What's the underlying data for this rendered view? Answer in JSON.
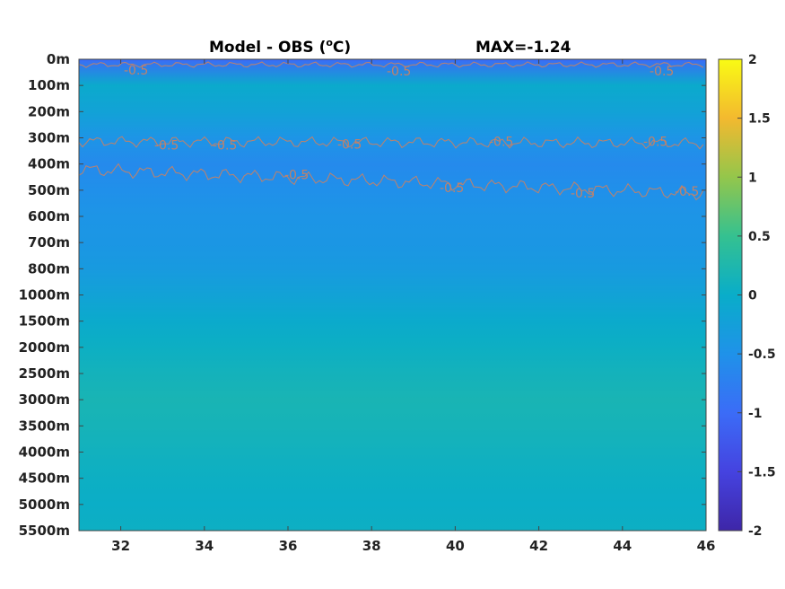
{
  "chart_data": {
    "type": "heatmap",
    "title_left": "Model - OBS (",
    "title_unit_sup": "o",
    "title_unit_tail": "C)",
    "title_right": "MAX=-1.24",
    "x_ticks": [
      32,
      34,
      36,
      38,
      40,
      42,
      44,
      46
    ],
    "xlim": [
      31,
      46
    ],
    "y_tick_labels": [
      "0m",
      "100m",
      "200m",
      "300m",
      "400m",
      "500m",
      "600m",
      "700m",
      "800m",
      "1000m",
      "1500m",
      "2000m",
      "2500m",
      "3000m",
      "3500m",
      "4000m",
      "4500m",
      "5000m",
      "5500m"
    ],
    "colorbar": {
      "range": [
        -2,
        2
      ],
      "ticks": [
        "2",
        "1.5",
        "1",
        "0.5",
        "0",
        "-0.5",
        "-1",
        "-1.5",
        "-2"
      ],
      "colormap": "parula"
    },
    "contour_level": -0.5,
    "contour_label": "-0.5",
    "contour_color": "#c0826a",
    "depth_profile": [
      {
        "depth": "0m",
        "value": -1.0
      },
      {
        "depth": "100m",
        "value": -0.05
      },
      {
        "depth": "200m",
        "value": -0.2
      },
      {
        "depth": "300m",
        "value": -0.45
      },
      {
        "depth": "400m",
        "value": -0.6
      },
      {
        "depth": "500m",
        "value": -0.52
      },
      {
        "depth": "600m",
        "value": -0.45
      },
      {
        "depth": "700m",
        "value": -0.42
      },
      {
        "depth": "800m",
        "value": -0.35
      },
      {
        "depth": "1000m",
        "value": -0.2
      },
      {
        "depth": "1500m",
        "value": -0.05
      },
      {
        "depth": "2000m",
        "value": 0.05
      },
      {
        "depth": "2500m",
        "value": 0.12
      },
      {
        "depth": "3000m",
        "value": 0.18
      },
      {
        "depth": "3500m",
        "value": 0.15
      },
      {
        "depth": "4000m",
        "value": 0.1
      },
      {
        "depth": "4500m",
        "value": 0.05
      },
      {
        "depth": "5000m",
        "value": 0.02
      },
      {
        "depth": "5500m",
        "value": 0.05
      }
    ]
  }
}
